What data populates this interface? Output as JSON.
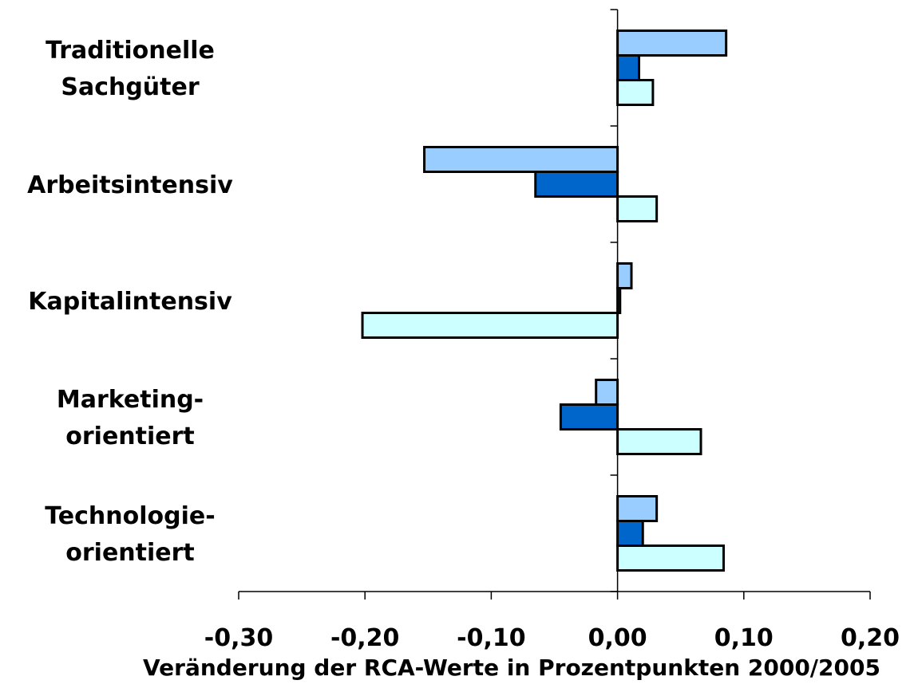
{
  "chart_data": {
    "type": "bar",
    "orientation": "horizontal",
    "categories": [
      [
        "Traditionelle",
        "Sachgüter"
      ],
      [
        "Arbeitsintensiv"
      ],
      [
        "Kapitalintensiv"
      ],
      [
        "Marketing-",
        "orientiert"
      ],
      [
        "Technologie-",
        "orientiert"
      ]
    ],
    "series": [
      {
        "values": [
          0.086,
          -0.153,
          0.011,
          -0.017,
          0.031
        ],
        "color": "#99ccff"
      },
      {
        "values": [
          0.017,
          -0.065,
          0.002,
          -0.045,
          0.02
        ],
        "color": "#0066cc"
      },
      {
        "values": [
          0.028,
          0.031,
          -0.202,
          0.066,
          0.084
        ],
        "color": "#ccffff"
      }
    ],
    "xlim": [
      -0.3,
      0.2
    ],
    "xticks": [
      -0.3,
      -0.2,
      -0.1,
      0.0,
      0.1,
      0.2
    ],
    "tick_labels": [
      "-0,30",
      "-0,20",
      "-0,10",
      "0,00",
      "0,10",
      "0,20"
    ],
    "xlabel": "Veränderung der RCA-Werte in Prozentpunkten 2000/2005",
    "title": "",
    "grid": false,
    "legend": "none"
  }
}
